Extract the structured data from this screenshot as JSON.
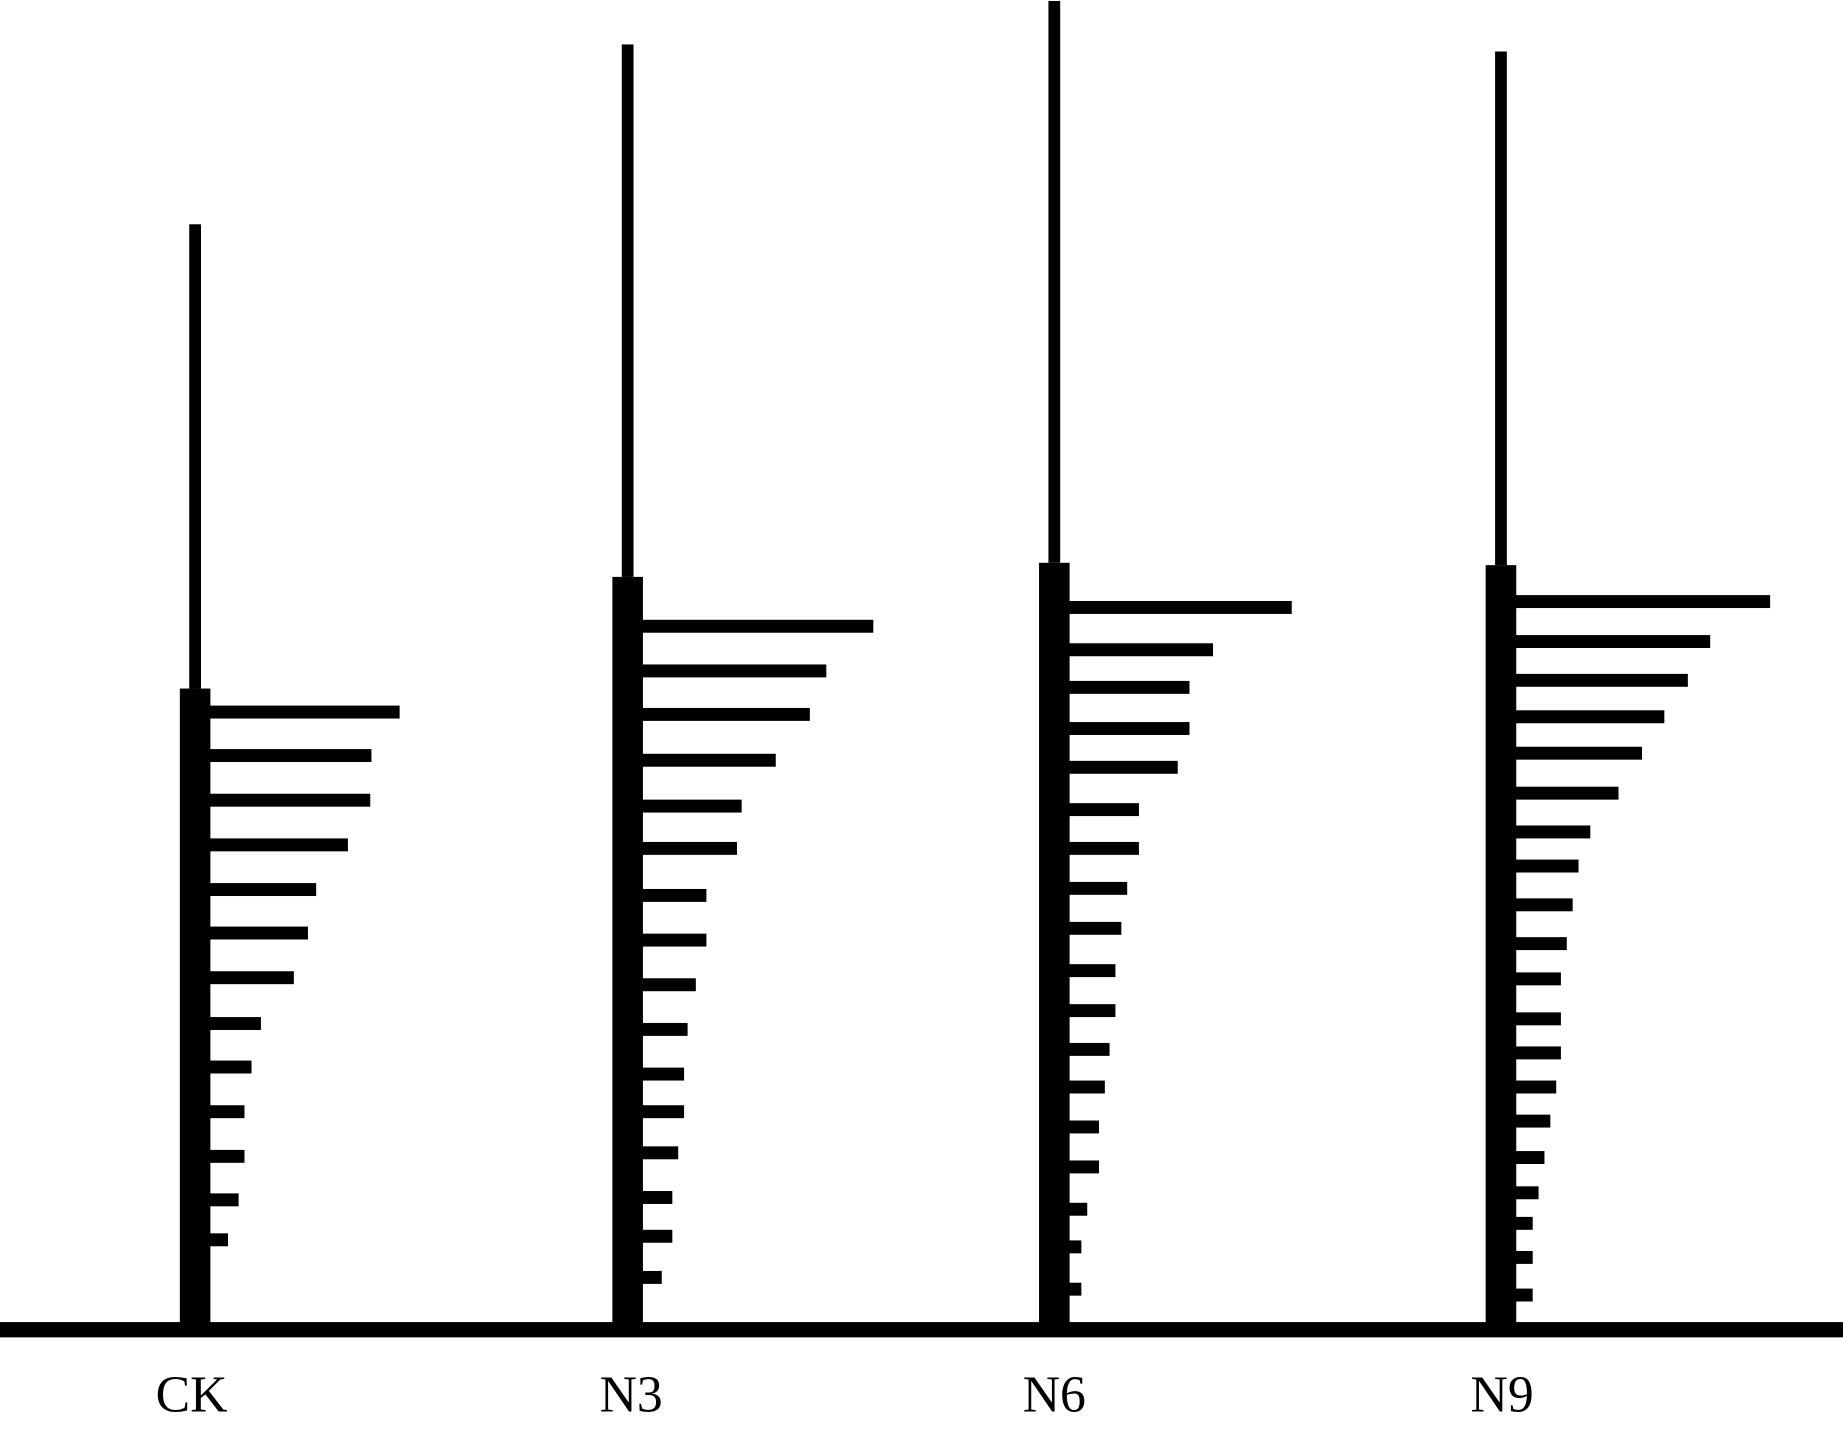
{
  "labels": [
    "CK",
    "N3",
    "N6",
    "N9"
  ]
}
